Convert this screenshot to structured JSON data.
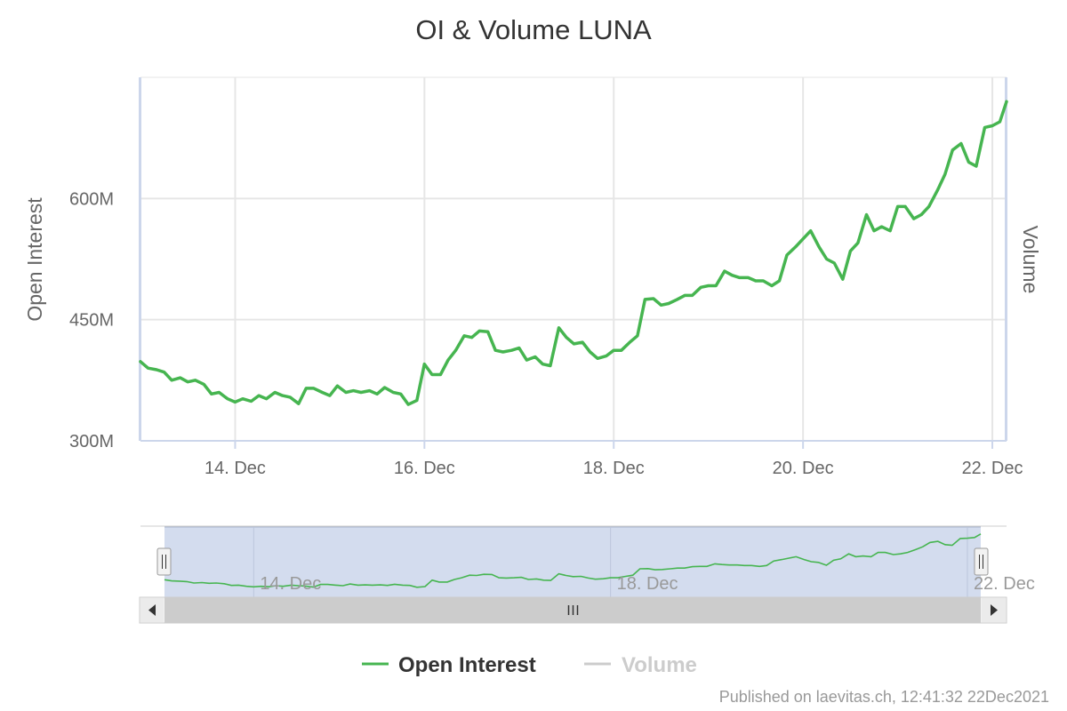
{
  "colors": {
    "oi_line": "#46b550",
    "volume_line": "#cccccc",
    "grid": "#e6e6e6",
    "navigator_mask": "#d3dcee"
  },
  "chart_data": {
    "type": "line",
    "title": "OI & Volume LUNA",
    "xlabel": "",
    "ylabel": "Open Interest",
    "ylabel_right": "Volume",
    "xlim": [
      13.0,
      22.15
    ],
    "ylim": [
      300,
      750
    ],
    "x_ticks": [
      {
        "value": 14,
        "label": "14. Dec"
      },
      {
        "value": 16,
        "label": "16. Dec"
      },
      {
        "value": 18,
        "label": "18. Dec"
      },
      {
        "value": 20,
        "label": "20. Dec"
      },
      {
        "value": 22,
        "label": "22. Dec"
      }
    ],
    "y_ticks": [
      {
        "value": 300,
        "label": "300M"
      },
      {
        "value": 450,
        "label": "450M"
      },
      {
        "value": 600,
        "label": "600M"
      }
    ],
    "grid": true,
    "legend_position": "bottom",
    "series": [
      {
        "name": "Open Interest",
        "unit": "M",
        "visible": true,
        "points": [
          [
            13.0,
            398
          ],
          [
            13.08,
            390
          ],
          [
            13.17,
            388
          ],
          [
            13.25,
            385
          ],
          [
            13.33,
            375
          ],
          [
            13.42,
            378
          ],
          [
            13.5,
            373
          ],
          [
            13.58,
            375
          ],
          [
            13.67,
            370
          ],
          [
            13.75,
            358
          ],
          [
            13.83,
            360
          ],
          [
            13.92,
            352
          ],
          [
            14.0,
            348
          ],
          [
            14.08,
            352
          ],
          [
            14.17,
            349
          ],
          [
            14.25,
            356
          ],
          [
            14.33,
            352
          ],
          [
            14.42,
            360
          ],
          [
            14.5,
            356
          ],
          [
            14.58,
            354
          ],
          [
            14.67,
            346
          ],
          [
            14.75,
            365
          ],
          [
            14.83,
            365
          ],
          [
            14.92,
            360
          ],
          [
            15.0,
            356
          ],
          [
            15.08,
            368
          ],
          [
            15.17,
            360
          ],
          [
            15.25,
            362
          ],
          [
            15.33,
            360
          ],
          [
            15.42,
            362
          ],
          [
            15.5,
            358
          ],
          [
            15.58,
            366
          ],
          [
            15.67,
            360
          ],
          [
            15.75,
            358
          ],
          [
            15.83,
            345
          ],
          [
            15.92,
            350
          ],
          [
            16.0,
            395
          ],
          [
            16.08,
            382
          ],
          [
            16.17,
            382
          ],
          [
            16.25,
            400
          ],
          [
            16.33,
            412
          ],
          [
            16.42,
            430
          ],
          [
            16.5,
            428
          ],
          [
            16.58,
            436
          ],
          [
            16.67,
            435
          ],
          [
            16.75,
            412
          ],
          [
            16.83,
            410
          ],
          [
            16.92,
            412
          ],
          [
            17.0,
            415
          ],
          [
            17.08,
            400
          ],
          [
            17.17,
            404
          ],
          [
            17.25,
            395
          ],
          [
            17.33,
            393
          ],
          [
            17.42,
            440
          ],
          [
            17.5,
            428
          ],
          [
            17.58,
            420
          ],
          [
            17.67,
            422
          ],
          [
            17.75,
            410
          ],
          [
            17.83,
            402
          ],
          [
            17.92,
            405
          ],
          [
            18.0,
            412
          ],
          [
            18.08,
            412
          ],
          [
            18.17,
            422
          ],
          [
            18.25,
            430
          ],
          [
            18.33,
            475
          ],
          [
            18.42,
            476
          ],
          [
            18.5,
            468
          ],
          [
            18.58,
            470
          ],
          [
            18.67,
            475
          ],
          [
            18.75,
            480
          ],
          [
            18.83,
            480
          ],
          [
            18.92,
            490
          ],
          [
            19.0,
            492
          ],
          [
            19.08,
            492
          ],
          [
            19.17,
            510
          ],
          [
            19.25,
            505
          ],
          [
            19.33,
            502
          ],
          [
            19.42,
            502
          ],
          [
            19.5,
            498
          ],
          [
            19.58,
            498
          ],
          [
            19.67,
            492
          ],
          [
            19.75,
            498
          ],
          [
            19.83,
            530
          ],
          [
            19.92,
            540
          ],
          [
            20.0,
            550
          ],
          [
            20.08,
            560
          ],
          [
            20.17,
            540
          ],
          [
            20.25,
            525
          ],
          [
            20.33,
            520
          ],
          [
            20.42,
            500
          ],
          [
            20.5,
            535
          ],
          [
            20.58,
            545
          ],
          [
            20.67,
            580
          ],
          [
            20.75,
            560
          ],
          [
            20.83,
            565
          ],
          [
            20.92,
            560
          ],
          [
            21.0,
            590
          ],
          [
            21.08,
            590
          ],
          [
            21.17,
            575
          ],
          [
            21.25,
            580
          ],
          [
            21.33,
            590
          ],
          [
            21.42,
            610
          ],
          [
            21.5,
            630
          ],
          [
            21.58,
            660
          ],
          [
            21.67,
            668
          ],
          [
            21.75,
            645
          ],
          [
            21.83,
            640
          ],
          [
            21.92,
            688
          ],
          [
            22.0,
            690
          ],
          [
            22.08,
            695
          ],
          [
            22.15,
            720
          ]
        ]
      },
      {
        "name": "Volume",
        "visible": false,
        "points": []
      }
    ]
  },
  "credit": "Published on laevitas.ch, 12:41:32 22Dec2021"
}
